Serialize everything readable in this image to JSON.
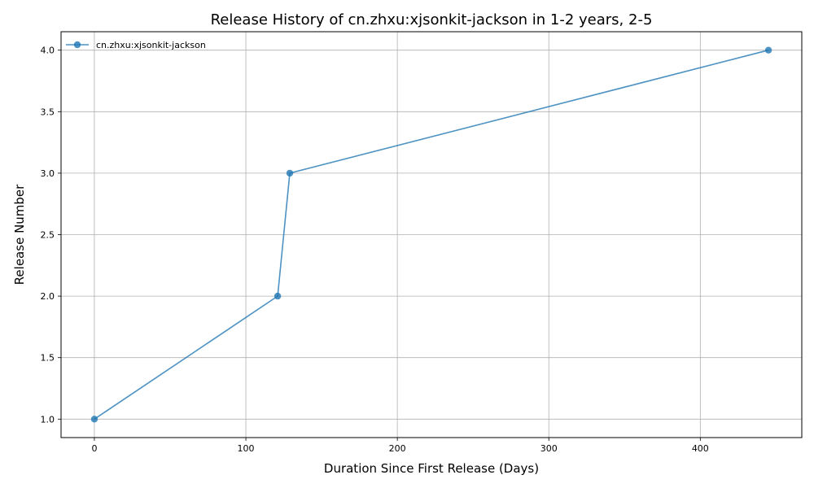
{
  "chart_data": {
    "type": "line",
    "title": "Release History of cn.zhxu:xjsonkit-jackson in 1-2 years, 2-5",
    "xlabel": "Duration Since First Release (Days)",
    "ylabel": "Release Number",
    "xlim": [
      -22,
      467
    ],
    "ylim": [
      0.85,
      4.15
    ],
    "xticks": [
      0,
      100,
      200,
      300,
      400
    ],
    "xtick_labels": [
      "0",
      "100",
      "200",
      "300",
      "400"
    ],
    "yticks": [
      1.0,
      1.5,
      2.0,
      2.5,
      3.0,
      3.5,
      4.0
    ],
    "ytick_labels": [
      "1.0",
      "1.5",
      "2.0",
      "2.5",
      "3.0",
      "3.5",
      "4.0"
    ],
    "grid": true,
    "legend_position": "top-left",
    "series": [
      {
        "name": "cn.zhxu:xjsonkit-jackson",
        "color": "#1f77b4",
        "marker": "circle",
        "x": [
          0,
          121,
          129,
          445
        ],
        "y": [
          1,
          2,
          3,
          4
        ]
      }
    ]
  }
}
